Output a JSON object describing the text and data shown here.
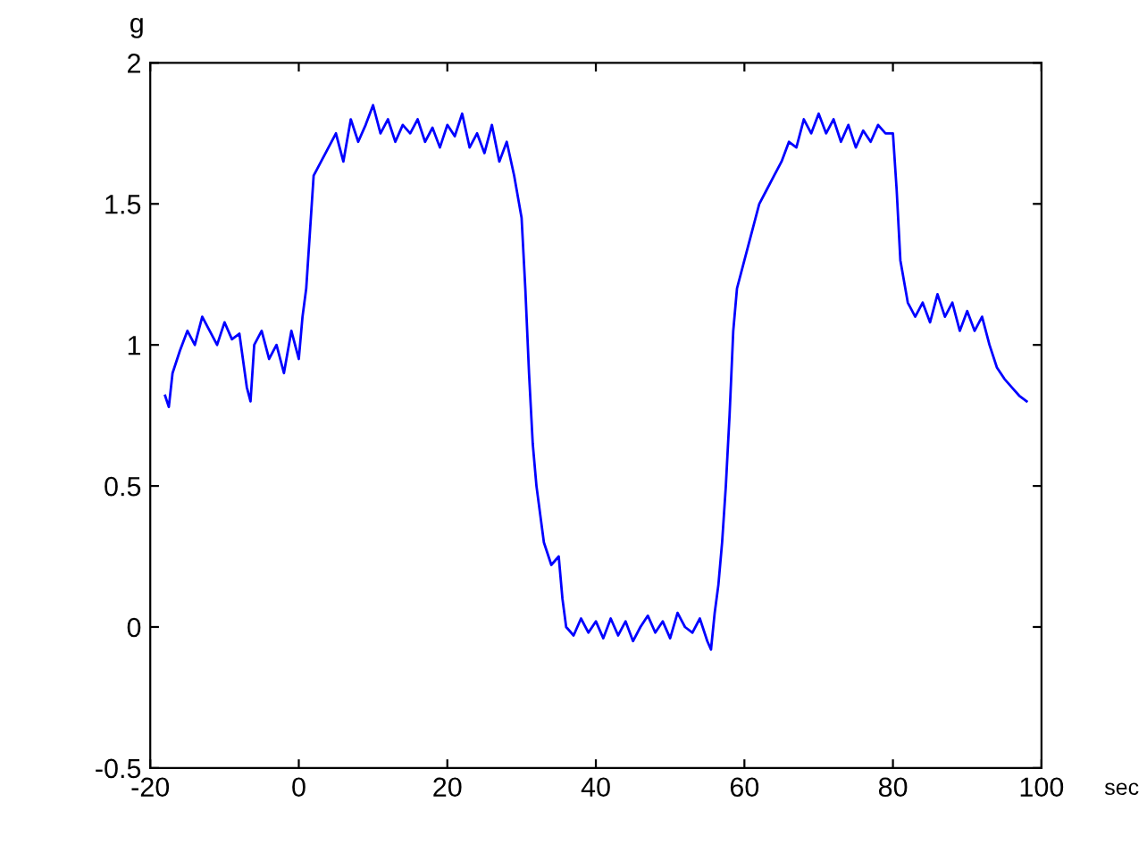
{
  "chart_data": {
    "type": "line",
    "xlabel": "sec",
    "ylabel": "g",
    "x": [
      -18,
      -17.5,
      -17,
      -16,
      -15,
      -14,
      -13,
      -12,
      -11,
      -10,
      -9,
      -8,
      -7,
      -6.5,
      -6,
      -5,
      -4,
      -3,
      -2,
      -1,
      0,
      0.5,
      1,
      1.5,
      2,
      3,
      4,
      5,
      6,
      7,
      8,
      9,
      10,
      11,
      12,
      13,
      14,
      15,
      16,
      17,
      18,
      19,
      20,
      21,
      22,
      23,
      24,
      25,
      26,
      27,
      28,
      29,
      30,
      30.5,
      31,
      31.5,
      32,
      33,
      34,
      35,
      35.5,
      36,
      37,
      38,
      39,
      40,
      41,
      42,
      43,
      44,
      45,
      46,
      47,
      48,
      49,
      50,
      51,
      52,
      53,
      54,
      55,
      55.5,
      56,
      56.5,
      57,
      57.5,
      58,
      58.5,
      59,
      60,
      61,
      62,
      63,
      64,
      65,
      66,
      67,
      68,
      69,
      70,
      71,
      72,
      73,
      74,
      75,
      76,
      77,
      78,
      79,
      80,
      80.5,
      81,
      82,
      83,
      84,
      85,
      86,
      87,
      88,
      89,
      90,
      91,
      92,
      93,
      94,
      95,
      96,
      97,
      98
    ],
    "series": [
      {
        "color": "#0000ff",
        "values": [
          0.82,
          0.78,
          0.9,
          0.98,
          1.05,
          1.0,
          1.1,
          1.05,
          1.0,
          1.08,
          1.02,
          1.04,
          0.85,
          0.8,
          1.0,
          1.05,
          0.95,
          1.0,
          0.9,
          1.05,
          0.95,
          1.1,
          1.2,
          1.4,
          1.6,
          1.65,
          1.7,
          1.75,
          1.65,
          1.8,
          1.72,
          1.78,
          1.85,
          1.75,
          1.8,
          1.72,
          1.78,
          1.75,
          1.8,
          1.72,
          1.77,
          1.7,
          1.78,
          1.74,
          1.82,
          1.7,
          1.75,
          1.68,
          1.78,
          1.65,
          1.72,
          1.6,
          1.45,
          1.2,
          0.9,
          0.65,
          0.5,
          0.3,
          0.22,
          0.25,
          0.1,
          0.0,
          -0.03,
          0.03,
          -0.02,
          0.02,
          -0.04,
          0.03,
          -0.03,
          0.02,
          -0.05,
          0.0,
          0.04,
          -0.02,
          0.02,
          -0.04,
          0.05,
          0.0,
          -0.02,
          0.03,
          -0.05,
          -0.08,
          0.05,
          0.15,
          0.3,
          0.5,
          0.75,
          1.05,
          1.2,
          1.3,
          1.4,
          1.5,
          1.55,
          1.6,
          1.65,
          1.72,
          1.7,
          1.8,
          1.75,
          1.82,
          1.75,
          1.8,
          1.72,
          1.78,
          1.7,
          1.76,
          1.72,
          1.78,
          1.75,
          1.75,
          1.55,
          1.3,
          1.15,
          1.1,
          1.15,
          1.08,
          1.18,
          1.1,
          1.15,
          1.05,
          1.12,
          1.05,
          1.1,
          1.0,
          0.92,
          0.88,
          0.85,
          0.82,
          0.8
        ]
      }
    ],
    "xlim": [
      -20,
      100
    ],
    "xticks": [
      -20,
      0,
      20,
      40,
      60,
      80,
      100
    ],
    "ylim": [
      -0.5,
      2
    ],
    "yticks": [
      -0.5,
      0,
      0.5,
      1,
      1.5,
      2
    ],
    "grid": false,
    "legend": false,
    "line_style": "solid",
    "marker": "none"
  }
}
